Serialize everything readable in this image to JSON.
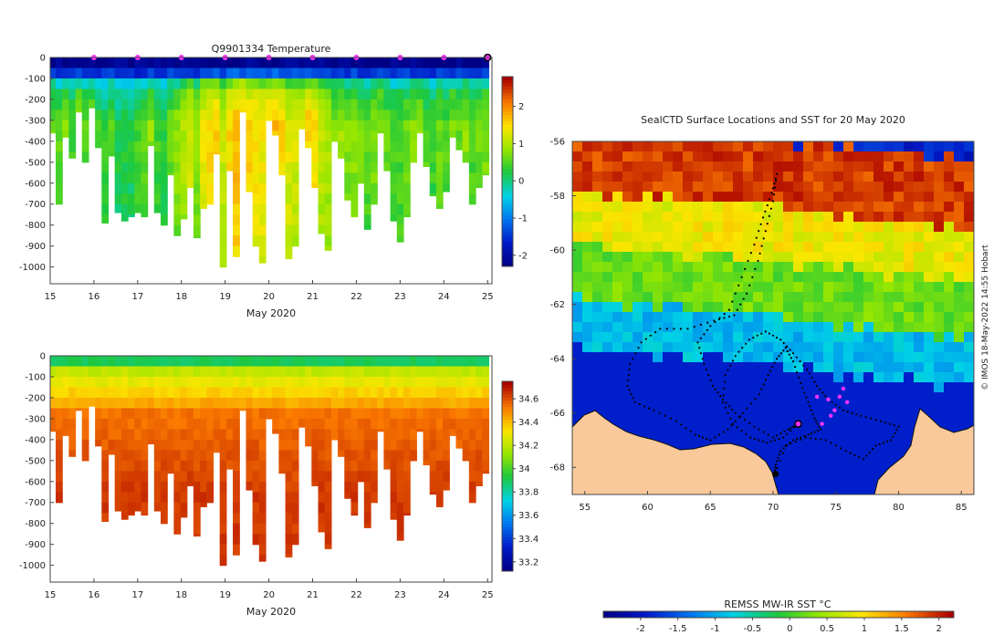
{
  "figure": {
    "watermark": "© IMOS 18-May-2022 14:55 Hobart"
  },
  "chart_data": [
    {
      "type": "heatmap",
      "name": "temperature-section",
      "title": "Q9901334  Temperature",
      "xlabel": "May 2020",
      "ylabel": "",
      "x_ticks": [
        "15",
        "16",
        "17",
        "18",
        "19",
        "20",
        "21",
        "22",
        "23",
        "24",
        "25"
      ],
      "y_ticks": [
        "0",
        "-100",
        "-200",
        "-300",
        "-400",
        "-500",
        "-600",
        "-700",
        "-800",
        "-900",
        "-1000"
      ],
      "xlim": [
        15,
        25.1
      ],
      "ylim": [
        -1080,
        0
      ],
      "colorbar": {
        "ticks": [
          "-2",
          "-1",
          "0",
          "1",
          "2"
        ],
        "range": [
          -2.3,
          2.8
        ]
      },
      "surface_markers_days": [
        16,
        17,
        18,
        19,
        20,
        21,
        22,
        23,
        24
      ],
      "highlight_day": 25,
      "profile_days": [
        15.05,
        15.2,
        15.35,
        15.5,
        15.65,
        15.8,
        15.95,
        16.1,
        16.25,
        16.4,
        16.55,
        16.7,
        16.85,
        17.0,
        17.15,
        17.3,
        17.45,
        17.6,
        17.75,
        17.9,
        18.05,
        18.2,
        18.35,
        18.5,
        18.65,
        18.8,
        18.95,
        19.1,
        19.25,
        19.4,
        19.55,
        19.7,
        19.85,
        20.0,
        20.15,
        20.3,
        20.45,
        20.6,
        20.75,
        20.9,
        21.05,
        21.2,
        21.35,
        21.5,
        21.65,
        21.8,
        21.95,
        22.1,
        22.25,
        22.4,
        22.55,
        22.7,
        22.85,
        23.0,
        23.15,
        23.3,
        23.45,
        23.6,
        23.75,
        23.9,
        24.05,
        24.2,
        24.35,
        24.5,
        24.65,
        24.8,
        24.95
      ],
      "profile_max_depths_m": [
        360,
        700,
        380,
        480,
        260,
        500,
        240,
        430,
        790,
        470,
        740,
        780,
        760,
        740,
        760,
        420,
        740,
        800,
        560,
        850,
        770,
        620,
        860,
        720,
        700,
        460,
        1000,
        540,
        950,
        260,
        640,
        900,
        980,
        300,
        370,
        560,
        960,
        900,
        340,
        430,
        620,
        840,
        920,
        400,
        480,
        680,
        760,
        600,
        820,
        700,
        360,
        540,
        780,
        880,
        760,
        500,
        360,
        520,
        660,
        720,
        640,
        380,
        440,
        500,
        700,
        620,
        560
      ],
      "profile_mean_temp_c": [
        0.4,
        0.3,
        0.5,
        0.2,
        0.6,
        0.3,
        0.5,
        0.2,
        0.1,
        0.3,
        0.0,
        0.1,
        0.0,
        0.2,
        0.3,
        0.6,
        0.2,
        0.1,
        0.4,
        0.6,
        0.8,
        1.0,
        0.6,
        1.2,
        1.3,
        1.4,
        1.0,
        1.3,
        1.5,
        1.6,
        1.4,
        1.3,
        1.2,
        1.4,
        1.5,
        1.3,
        1.1,
        1.0,
        1.2,
        1.4,
        1.3,
        0.9,
        0.8,
        0.6,
        0.7,
        0.5,
        0.6,
        0.4,
        0.3,
        0.5,
        0.6,
        0.4,
        0.2,
        0.3,
        0.4,
        0.5,
        0.6,
        0.3,
        0.2,
        0.4,
        0.3,
        0.5,
        0.4,
        0.6,
        0.3,
        0.4,
        0.5
      ]
    },
    {
      "type": "heatmap",
      "name": "salinity-section",
      "title": "",
      "xlabel": "May 2020",
      "ylabel": "",
      "x_ticks": [
        "15",
        "16",
        "17",
        "18",
        "19",
        "20",
        "21",
        "22",
        "23",
        "24",
        "25"
      ],
      "y_ticks": [
        "0",
        "-100",
        "-200",
        "-300",
        "-400",
        "-500",
        "-600",
        "-700",
        "-800",
        "-900",
        "-1000"
      ],
      "xlim": [
        15,
        25.1
      ],
      "ylim": [
        -1080,
        0
      ],
      "colorbar": {
        "ticks": [
          "33.2",
          "33.4",
          "33.6",
          "33.8",
          "34",
          "34.2",
          "34.4",
          "34.6"
        ],
        "range": [
          33.12,
          34.75
        ]
      },
      "profile_days": [
        15.05,
        15.2,
        15.35,
        15.5,
        15.65,
        15.8,
        15.95,
        16.1,
        16.25,
        16.4,
        16.55,
        16.7,
        16.85,
        17.0,
        17.15,
        17.3,
        17.45,
        17.6,
        17.75,
        17.9,
        18.05,
        18.2,
        18.35,
        18.5,
        18.65,
        18.8,
        18.95,
        19.1,
        19.25,
        19.4,
        19.55,
        19.7,
        19.85,
        20.0,
        20.15,
        20.3,
        20.45,
        20.6,
        20.75,
        20.9,
        21.05,
        21.2,
        21.35,
        21.5,
        21.65,
        21.8,
        21.95,
        22.1,
        22.25,
        22.4,
        22.55,
        22.7,
        22.85,
        23.0,
        23.15,
        23.3,
        23.45,
        23.6,
        23.75,
        23.9,
        24.05,
        24.2,
        24.35,
        24.5,
        24.65,
        24.8,
        24.95
      ],
      "profile_max_depths_m": [
        360,
        700,
        380,
        480,
        260,
        500,
        240,
        430,
        790,
        470,
        740,
        780,
        760,
        740,
        760,
        420,
        740,
        800,
        560,
        850,
        770,
        620,
        860,
        720,
        700,
        460,
        1000,
        540,
        950,
        260,
        640,
        900,
        980,
        300,
        370,
        560,
        960,
        900,
        340,
        430,
        620,
        840,
        920,
        400,
        480,
        680,
        760,
        600,
        820,
        700,
        360,
        540,
        780,
        880,
        760,
        500,
        360,
        520,
        660,
        720,
        640,
        380,
        440,
        500,
        700,
        620,
        560
      ],
      "surface_salinity": 33.9,
      "deep_salinity": 34.65
    },
    {
      "type": "heatmap",
      "name": "sst-map",
      "title": "SealCTD Surface Locations and SST for 20 May 2020",
      "xlabel": "",
      "ylabel": "",
      "x_ticks": [
        "55",
        "60",
        "65",
        "70",
        "75",
        "80",
        "85"
      ],
      "y_ticks": [
        "-56",
        "-58",
        "-60",
        "-62",
        "-64",
        "-66",
        "-68"
      ],
      "xlim": [
        54,
        86
      ],
      "ylim": [
        -69,
        -56
      ],
      "colorbar": {
        "label": "REMSS MW-IR SST °C",
        "ticks": [
          "-2",
          "-1.5",
          "-1",
          "-0.5",
          "0",
          "0.5",
          "1",
          "1.5",
          "2"
        ],
        "range": [
          -2.5,
          2.2
        ]
      },
      "sst_zones": [
        {
          "lat_from": -56,
          "lat_to": -58.5,
          "sst_c": 1.9
        },
        {
          "lat_from": -58.5,
          "lat_to": -60.5,
          "sst_c": 0.9
        },
        {
          "lat_from": -60.5,
          "lat_to": -62.5,
          "sst_c": 0.2
        },
        {
          "lat_from": -62.5,
          "lat_to": -64.3,
          "sst_c": -0.9
        },
        {
          "lat_from": -64.3,
          "lat_to": -69,
          "sst_c": -1.9
        }
      ],
      "track_points": [
        [
          72.0,
          -66.4
        ],
        [
          71.2,
          -66.6
        ],
        [
          70.0,
          -66.9
        ],
        [
          68.5,
          -66.5
        ],
        [
          67.0,
          -66.0
        ],
        [
          66.0,
          -65.5
        ],
        [
          65.2,
          -65.0
        ],
        [
          64.5,
          -64.2
        ],
        [
          64.0,
          -63.4
        ],
        [
          65.0,
          -62.8
        ],
        [
          66.5,
          -62.2
        ],
        [
          67.5,
          -61.0
        ],
        [
          68.5,
          -59.8
        ],
        [
          69.2,
          -58.8
        ],
        [
          69.9,
          -57.9
        ],
        [
          70.3,
          -57.2
        ],
        [
          70.0,
          -58.2
        ],
        [
          69.4,
          -59.3
        ],
        [
          68.8,
          -60.4
        ],
        [
          67.9,
          -61.6
        ],
        [
          66.9,
          -62.4
        ],
        [
          65.3,
          -62.6
        ],
        [
          63.2,
          -62.9
        ],
        [
          61.0,
          -62.9
        ],
        [
          59.5,
          -63.4
        ],
        [
          58.6,
          -64.2
        ],
        [
          58.4,
          -65.0
        ],
        [
          59.0,
          -65.6
        ],
        [
          60.5,
          -65.9
        ],
        [
          62.3,
          -66.3
        ],
        [
          63.8,
          -66.8
        ],
        [
          65.0,
          -67.0
        ],
        [
          66.4,
          -66.6
        ],
        [
          67.6,
          -66.0
        ],
        [
          68.9,
          -65.3
        ],
        [
          69.6,
          -64.6
        ],
        [
          70.3,
          -64.0
        ],
        [
          71.0,
          -63.6
        ],
        [
          71.6,
          -64.1
        ],
        [
          72.2,
          -64.9
        ],
        [
          72.8,
          -65.6
        ],
        [
          73.3,
          -66.2
        ],
        [
          73.8,
          -66.6
        ],
        [
          72.8,
          -66.8
        ],
        [
          71.6,
          -67.0
        ],
        [
          70.6,
          -67.4
        ],
        [
          70.2,
          -67.9
        ],
        [
          70.1,
          -68.3
        ],
        [
          71.0,
          -67.2
        ],
        [
          72.6,
          -66.9
        ],
        [
          74.2,
          -67.0
        ],
        [
          75.8,
          -67.4
        ],
        [
          77.2,
          -67.7
        ],
        [
          78.2,
          -67.2
        ],
        [
          79.4,
          -67.0
        ],
        [
          80.0,
          -66.5
        ],
        [
          78.6,
          -66.3
        ],
        [
          77.0,
          -66.1
        ],
        [
          75.6,
          -65.9
        ],
        [
          74.4,
          -65.5
        ],
        [
          73.5,
          -65.0
        ],
        [
          72.7,
          -64.4
        ],
        [
          71.6,
          -63.8
        ],
        [
          70.6,
          -63.3
        ],
        [
          69.4,
          -63.0
        ],
        [
          68.1,
          -63.3
        ],
        [
          67.0,
          -63.9
        ],
        [
          66.2,
          -64.6
        ],
        [
          66.0,
          -65.6
        ],
        [
          66.8,
          -66.4
        ],
        [
          68.2,
          -66.9
        ],
        [
          69.5,
          -67.1
        ],
        [
          70.8,
          -66.9
        ],
        [
          72.0,
          -66.4
        ]
      ],
      "current_position": [
        72.0,
        -66.4
      ],
      "recent_positions": [
        [
          73.5,
          -65.4
        ],
        [
          74.4,
          -65.5
        ],
        [
          74.9,
          -65.9
        ],
        [
          75.3,
          -65.4
        ],
        [
          75.6,
          -65.1
        ],
        [
          75.9,
          -65.6
        ],
        [
          74.6,
          -66.1
        ],
        [
          73.9,
          -66.4
        ]
      ],
      "coast_end_point": [
        70.2,
        -68.25
      ]
    }
  ]
}
